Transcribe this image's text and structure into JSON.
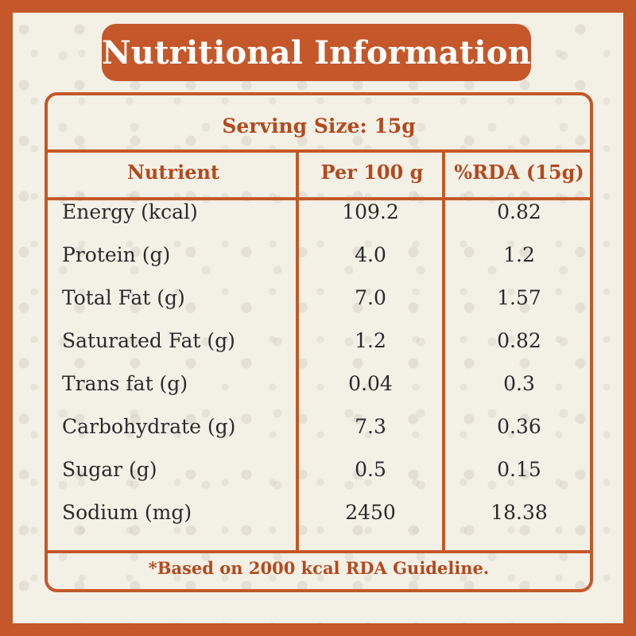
{
  "title": "Nutritional Information",
  "serving_size": "Serving Size: 15g",
  "columns": {
    "nutrient": "Nutrient",
    "per100": "Per 100 g",
    "rda": "%RDA (15g)"
  },
  "rows": [
    {
      "name": "Energy (kcal)",
      "per100": "109.2",
      "rda": "0.82"
    },
    {
      "name": "Protein (g)",
      "per100": "4.0",
      "rda": "1.2"
    },
    {
      "name": "Total Fat (g)",
      "per100": "7.0",
      "rda": "1.57"
    },
    {
      "name": "Saturated Fat (g)",
      "per100": "1.2",
      "rda": "0.82"
    },
    {
      "name": "Trans fat (g)",
      "per100": "0.04",
      "rda": "0.3"
    },
    {
      "name": "Carbohydrate (g)",
      "per100": "7.3",
      "rda": "0.36"
    },
    {
      "name": "Sugar (g)",
      "per100": "0.5",
      "rda": "0.15"
    },
    {
      "name": "Sodium (mg)",
      "per100": "2450",
      "rda": "18.38"
    }
  ],
  "footnote": "*Based on 2000 kcal RDA Guideline.",
  "colors": {
    "accent": "#c4582a",
    "background": "#f3f0e6",
    "text": "#2a2a2a"
  }
}
